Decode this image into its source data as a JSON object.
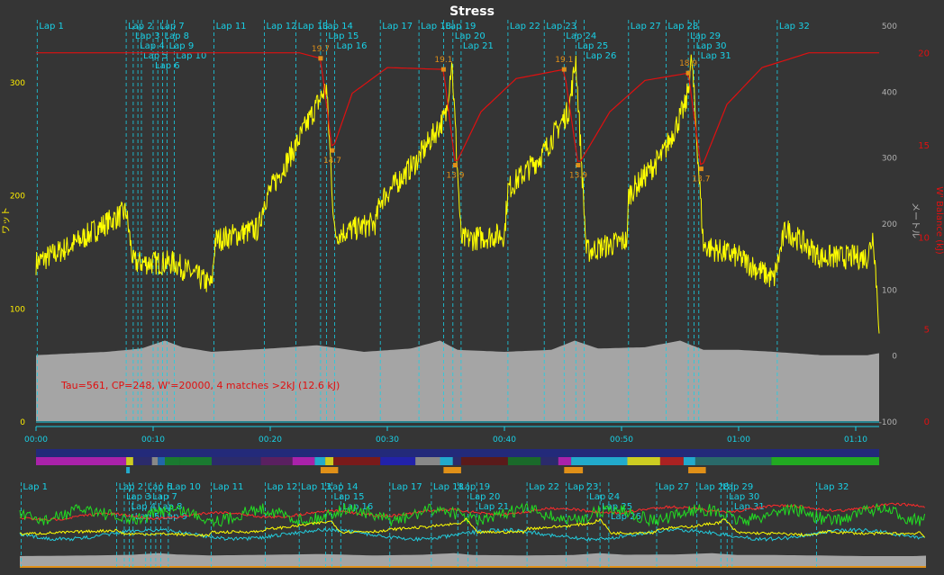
{
  "title": "Stress",
  "annotation": "Tau=561, CP=248, W'=20000, 4 matches >2kJ (12.6 kJ)",
  "colors": {
    "background": "#353535",
    "power": "#ffff00",
    "altitude": "#a5a5a5",
    "wbal": "#e01010",
    "lap": "#19d0e6",
    "lap_text": "#19d0e6",
    "match": "#e09018",
    "axis_power": "#ffee00",
    "axis_alt": "#b0b0b0",
    "axis_wbal": "#e01010",
    "hr": "#ff2a2a",
    "cadence": "#22dd22",
    "speed": "#22ccdd"
  },
  "chart_data": {
    "type": "line",
    "title": "Stress",
    "x_unit": "time (h:mm)",
    "x_range_min": [
      0,
      72
    ],
    "x_ticks": [
      "00:00",
      "00:10",
      "00:20",
      "00:30",
      "00:40",
      "00:50",
      "01:00",
      "01:10"
    ],
    "x_ticks_min": [
      0,
      10,
      20,
      30,
      40,
      50,
      60,
      70
    ],
    "axes": {
      "power": {
        "label": "ワット",
        "range": [
          0,
          350
        ],
        "ticks": [
          0,
          100,
          200,
          300
        ]
      },
      "altitude": {
        "label": "メートル",
        "range": [
          -100,
          500
        ],
        "ticks": [
          -100,
          0,
          100,
          200,
          300,
          400,
          500
        ]
      },
      "wbal": {
        "label": "W' Balance (kJ)",
        "range": [
          0,
          21.5
        ],
        "ticks": [
          0,
          5,
          10,
          15,
          20
        ]
      }
    },
    "laps": [
      {
        "label": "Lap 1",
        "t": 0.1
      },
      {
        "label": "Lap 2",
        "t": 7.7
      },
      {
        "label": "Lap 3",
        "t": 8.3
      },
      {
        "label": "Lap 4",
        "t": 8.7
      },
      {
        "label": "Lap 5",
        "t": 9.0
      },
      {
        "label": "Lap 6",
        "t": 10.0
      },
      {
        "label": "Lap 7",
        "t": 10.4
      },
      {
        "label": "Lap 8",
        "t": 10.8
      },
      {
        "label": "Lap 9",
        "t": 11.2
      },
      {
        "label": "Lap 10",
        "t": 11.8
      },
      {
        "label": "Lap 11",
        "t": 15.2
      },
      {
        "label": "Lap 12",
        "t": 19.5
      },
      {
        "label": "Lap 13",
        "t": 22.2
      },
      {
        "label": "Lap 14",
        "t": 24.3
      },
      {
        "label": "Lap 15",
        "t": 24.8
      },
      {
        "label": "Lap 16",
        "t": 25.5
      },
      {
        "label": "Lap 17",
        "t": 29.4
      },
      {
        "label": "Lap 18",
        "t": 32.7
      },
      {
        "label": "Lap 19",
        "t": 34.8
      },
      {
        "label": "Lap 20",
        "t": 35.6
      },
      {
        "label": "Lap 21",
        "t": 36.3
      },
      {
        "label": "Lap 22",
        "t": 40.3
      },
      {
        "label": "Lap 23",
        "t": 43.4
      },
      {
        "label": "Lap 24",
        "t": 45.1
      },
      {
        "label": "Lap 25",
        "t": 46.1
      },
      {
        "label": "Lap 26",
        "t": 46.8
      },
      {
        "label": "Lap 27",
        "t": 50.6
      },
      {
        "label": "Lap 28",
        "t": 53.8
      },
      {
        "label": "Lap 29",
        "t": 55.7
      },
      {
        "label": "Lap 30",
        "t": 56.2
      },
      {
        "label": "Lap 31",
        "t": 56.6
      },
      {
        "label": "Lap 32",
        "t": 63.3
      }
    ],
    "power_series": [
      [
        0,
        140
      ],
      [
        3,
        155
      ],
      [
        6,
        175
      ],
      [
        7.7,
        185
      ],
      [
        8.3,
        140
      ],
      [
        11.8,
        140
      ],
      [
        15,
        120
      ],
      [
        15.3,
        160
      ],
      [
        19,
        170
      ],
      [
        19.5,
        195
      ],
      [
        22,
        240
      ],
      [
        24,
        280
      ],
      [
        24.8,
        295
      ],
      [
        25.5,
        165
      ],
      [
        29,
        175
      ],
      [
        29.4,
        195
      ],
      [
        32.5,
        230
      ],
      [
        35,
        270
      ],
      [
        35.5,
        320
      ],
      [
        36.3,
        160
      ],
      [
        40,
        165
      ],
      [
        40.3,
        205
      ],
      [
        43.2,
        235
      ],
      [
        45.5,
        275
      ],
      [
        46.1,
        320
      ],
      [
        47.0,
        150
      ],
      [
        50.5,
        160
      ],
      [
        50.6,
        200
      ],
      [
        53.5,
        235
      ],
      [
        55.5,
        280
      ],
      [
        56.0,
        320
      ],
      [
        57.0,
        155
      ],
      [
        60,
        145
      ],
      [
        63,
        125
      ],
      [
        64,
        170
      ],
      [
        67,
        145
      ],
      [
        71,
        145
      ],
      [
        71.5,
        165
      ],
      [
        72,
        85
      ]
    ],
    "altitude_series": [
      [
        0,
        0
      ],
      [
        6,
        5
      ],
      [
        9,
        10
      ],
      [
        11,
        22
      ],
      [
        12.5,
        12
      ],
      [
        15,
        5
      ],
      [
        20,
        10
      ],
      [
        24,
        15
      ],
      [
        28,
        5
      ],
      [
        32,
        10
      ],
      [
        34.5,
        22
      ],
      [
        36,
        8
      ],
      [
        40,
        5
      ],
      [
        44,
        8
      ],
      [
        46,
        22
      ],
      [
        48,
        10
      ],
      [
        52,
        12
      ],
      [
        55,
        22
      ],
      [
        57,
        8
      ],
      [
        60,
        8
      ],
      [
        63,
        5
      ],
      [
        67,
        0
      ],
      [
        71,
        0
      ],
      [
        72,
        3
      ]
    ],
    "wbal_series": [
      [
        0,
        20.0
      ],
      [
        22.5,
        20.0
      ],
      [
        24.3,
        19.7
      ],
      [
        25.3,
        14.7
      ],
      [
        27,
        17.8
      ],
      [
        30,
        19.2
      ],
      [
        34.8,
        19.1
      ],
      [
        35.8,
        13.9
      ],
      [
        38,
        16.8
      ],
      [
        41,
        18.6
      ],
      [
        45.1,
        19.1
      ],
      [
        46.3,
        13.9
      ],
      [
        49,
        16.8
      ],
      [
        52,
        18.5
      ],
      [
        55.7,
        18.9
      ],
      [
        56.8,
        13.7
      ],
      [
        59,
        17.2
      ],
      [
        62,
        19.2
      ],
      [
        66,
        20.0
      ],
      [
        72,
        20.0
      ]
    ],
    "wbal_labels": [
      {
        "t": 24.3,
        "v": 19.7,
        "label": "19.7"
      },
      {
        "t": 25.3,
        "v": 14.7,
        "label": "14.7"
      },
      {
        "t": 34.8,
        "v": 19.1,
        "label": "19.1"
      },
      {
        "t": 35.8,
        "v": 13.9,
        "label": "13.9"
      },
      {
        "t": 45.1,
        "v": 19.1,
        "label": "19.1"
      },
      {
        "t": 46.3,
        "v": 13.9,
        "label": "13.9"
      },
      {
        "t": 55.7,
        "v": 18.9,
        "label": "18.9"
      },
      {
        "t": 56.8,
        "v": 13.7,
        "label": "13.7"
      }
    ],
    "matches": [
      {
        "start": 24.3,
        "end": 25.8
      },
      {
        "start": 34.8,
        "end": 36.3
      },
      {
        "start": 45.1,
        "end": 46.7
      },
      {
        "start": 55.7,
        "end": 57.2
      }
    ],
    "zone_bar": [
      {
        "start": 0,
        "end": 7.7,
        "color": "#aa22aa"
      },
      {
        "start": 7.7,
        "end": 8.3,
        "color": "#cccc22"
      },
      {
        "start": 8.3,
        "end": 9.9,
        "color": "#2b2b6b"
      },
      {
        "start": 9.9,
        "end": 10.4,
        "color": "#888888"
      },
      {
        "start": 10.4,
        "end": 11.0,
        "color": "#2266aa"
      },
      {
        "start": 11.0,
        "end": 12.3,
        "color": "#1a7a30"
      },
      {
        "start": 12.3,
        "end": 15.0,
        "color": "#1a7a30"
      },
      {
        "start": 15.0,
        "end": 19.2,
        "color": "#2b2b6b"
      },
      {
        "start": 19.2,
        "end": 21.9,
        "color": "#5a2060"
      },
      {
        "start": 21.9,
        "end": 23.8,
        "color": "#aa22aa"
      },
      {
        "start": 23.8,
        "end": 24.7,
        "color": "#22aacc"
      },
      {
        "start": 24.7,
        "end": 25.4,
        "color": "#cccc22"
      },
      {
        "start": 25.4,
        "end": 29.4,
        "color": "#7a1a1a"
      },
      {
        "start": 29.4,
        "end": 32.4,
        "color": "#2222aa"
      },
      {
        "start": 32.4,
        "end": 34.5,
        "color": "#888888"
      },
      {
        "start": 34.5,
        "end": 35.6,
        "color": "#22aacc"
      },
      {
        "start": 35.6,
        "end": 36.3,
        "color": "#2b2b6b"
      },
      {
        "start": 36.3,
        "end": 40.3,
        "color": "#5a1a1a"
      },
      {
        "start": 40.3,
        "end": 43.1,
        "color": "#1a6a2a"
      },
      {
        "start": 43.1,
        "end": 44.6,
        "color": "#2b2b6b"
      },
      {
        "start": 44.6,
        "end": 45.7,
        "color": "#aa22aa"
      },
      {
        "start": 45.7,
        "end": 50.5,
        "color": "#22aacc"
      },
      {
        "start": 50.5,
        "end": 53.3,
        "color": "#cccc22"
      },
      {
        "start": 53.3,
        "end": 55.3,
        "color": "#aa2222"
      },
      {
        "start": 55.3,
        "end": 56.3,
        "color": "#22aacc"
      },
      {
        "start": 56.3,
        "end": 62.8,
        "color": "#2a6a6a"
      },
      {
        "start": 62.8,
        "end": 72.0,
        "color": "#22aa22"
      }
    ],
    "overview_laps": [
      {
        "label": "Lap 1",
        "t": 0.1
      },
      {
        "label": "Lap 2",
        "t": 7.7
      },
      {
        "label": "Lap 3",
        "t": 8.3
      },
      {
        "label": "Lap 4",
        "t": 8.7
      },
      {
        "label": "Lap 5",
        "t": 9.0
      },
      {
        "label": "Lap 6",
        "t": 10.0
      },
      {
        "label": "Lap 7",
        "t": 10.4
      },
      {
        "label": "Lap 8",
        "t": 10.8
      },
      {
        "label": "Lap 9",
        "t": 11.2
      },
      {
        "label": "Lap 10",
        "t": 11.8
      },
      {
        "label": "Lap 11",
        "t": 15.2
      },
      {
        "label": "Lap 12",
        "t": 19.5
      },
      {
        "label": "Lap 13",
        "t": 22.2
      },
      {
        "label": "Lap 14",
        "t": 24.3
      },
      {
        "label": "Lap 15",
        "t": 24.8
      },
      {
        "label": "Lap 16",
        "t": 25.5
      },
      {
        "label": "Lap 17",
        "t": 29.4
      },
      {
        "label": "Lap 18",
        "t": 32.7
      },
      {
        "label": "Lap 19",
        "t": 34.8
      },
      {
        "label": "Lap 20",
        "t": 35.6
      },
      {
        "label": "Lap 21",
        "t": 36.3
      },
      {
        "label": "Lap 22",
        "t": 40.3
      },
      {
        "label": "Lap 23",
        "t": 43.4
      },
      {
        "label": "Lap 24",
        "t": 45.1
      },
      {
        "label": "Lap 25",
        "t": 46.1
      },
      {
        "label": "Lap 26",
        "t": 46.8
      },
      {
        "label": "Lap 27",
        "t": 50.6
      },
      {
        "label": "Lap 28",
        "t": 53.8
      },
      {
        "label": "Lap 29",
        "t": 55.7
      },
      {
        "label": "Lap 30",
        "t": 56.2
      },
      {
        "label": "Lap 31",
        "t": 56.6
      },
      {
        "label": "Lap 32",
        "t": 63.3
      }
    ]
  }
}
